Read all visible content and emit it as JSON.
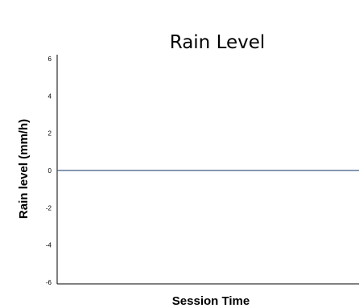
{
  "chart_data": {
    "type": "line",
    "title": "Rain Level",
    "xlabel": "Session Time",
    "ylabel": "Rain level (mm/h)",
    "ylim": [
      -6,
      6
    ],
    "yticks": [
      6,
      4,
      2,
      0,
      -2,
      -4,
      -6
    ],
    "grid": false,
    "series": [
      {
        "values": [
          0,
          0
        ]
      }
    ],
    "colors": {
      "line": "#3d5a80",
      "axis": "#000000"
    }
  }
}
